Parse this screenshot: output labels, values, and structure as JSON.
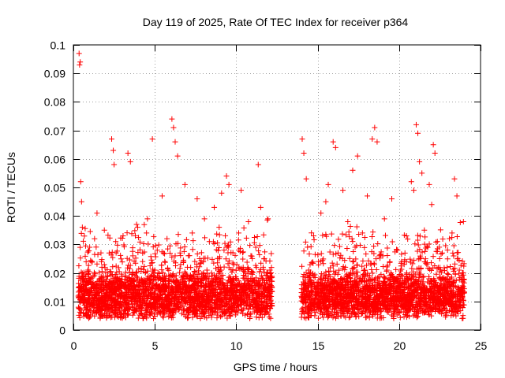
{
  "chart_data": {
    "type": "scatter",
    "title": "Day 119 of 2025, Rate Of TEC Index for receiver p364",
    "xlabel": "GPS time / hours",
    "ylabel": "ROTI / TECUs",
    "xlim": [
      0,
      25
    ],
    "ylim": [
      0,
      0.1
    ],
    "xticks": [
      0,
      5,
      10,
      15,
      20,
      25
    ],
    "yticks": [
      0,
      0.01,
      0.02,
      0.03,
      0.04,
      0.05,
      0.06,
      0.07,
      0.08,
      0.09,
      0.1
    ],
    "grid": true,
    "marker": "plus",
    "color": "#ff0000",
    "series": [
      {
        "x": [
          0.35,
          0.38,
          0.42,
          0.45,
          0.5,
          0.55,
          0.6,
          0.7,
          0.8,
          0.9,
          1.0,
          1.1,
          1.2,
          1.3,
          1.45,
          1.6,
          1.75,
          1.9,
          2.05,
          2.2,
          2.35,
          2.45,
          2.5,
          2.6,
          2.75,
          2.9,
          3.05,
          3.2,
          3.35,
          3.5,
          3.65,
          3.8,
          3.95,
          4.1,
          4.25,
          4.4,
          4.55,
          4.7,
          4.85,
          5.0,
          5.15,
          5.3,
          5.45,
          5.6,
          5.75,
          5.9,
          6.05,
          6.15,
          6.25,
          6.4,
          6.55,
          6.7,
          6.85,
          7.0,
          7.15,
          7.3,
          7.45,
          7.6,
          7.75,
          7.9,
          8.05,
          8.2,
          8.35,
          8.5,
          8.65,
          8.8,
          8.95,
          9.1,
          9.25,
          9.4,
          9.55,
          9.7,
          9.85,
          10.0,
          10.15,
          10.3,
          10.45,
          10.6,
          10.75,
          10.9,
          11.05,
          11.2,
          11.35,
          11.5,
          11.65,
          11.8,
          11.95,
          12.05
        ],
        "y": [
          0.097,
          0.093,
          0.094,
          0.052,
          0.045,
          0.036,
          0.018,
          0.011,
          0.014,
          0.021,
          0.029,
          0.015,
          0.009,
          0.032,
          0.041,
          0.012,
          0.022,
          0.035,
          0.013,
          0.027,
          0.067,
          0.063,
          0.058,
          0.031,
          0.018,
          0.012,
          0.033,
          0.019,
          0.062,
          0.059,
          0.026,
          0.014,
          0.036,
          0.011,
          0.024,
          0.017,
          0.039,
          0.015,
          0.067,
          0.021,
          0.028,
          0.013,
          0.047,
          0.019,
          0.032,
          0.011,
          0.074,
          0.071,
          0.066,
          0.061,
          0.027,
          0.016,
          0.051,
          0.022,
          0.013,
          0.034,
          0.018,
          0.046,
          0.025,
          0.012,
          0.039,
          0.021,
          0.031,
          0.014,
          0.043,
          0.019,
          0.036,
          0.048,
          0.028,
          0.054,
          0.051,
          0.017,
          0.023,
          0.011,
          0.034,
          0.049,
          0.021,
          0.015,
          0.038,
          0.026,
          0.013,
          0.029,
          0.058,
          0.043,
          0.022,
          0.014,
          0.039,
          0.012
        ]
      },
      {
        "x": [
          14.05,
          14.15,
          14.3,
          14.45,
          14.6,
          14.75,
          14.9,
          15.05,
          15.2,
          15.35,
          15.5,
          15.65,
          15.8,
          15.95,
          16.1,
          16.25,
          16.4,
          16.55,
          16.7,
          16.85,
          17.0,
          17.15,
          17.3,
          17.45,
          17.6,
          17.75,
          17.9,
          18.05,
          18.2,
          18.35,
          18.5,
          18.65,
          18.8,
          18.95,
          19.1,
          19.25,
          19.4,
          19.55,
          19.7,
          19.85,
          20.0,
          20.15,
          20.3,
          20.45,
          20.6,
          20.75,
          20.9,
          21.05,
          21.15,
          21.25,
          21.4,
          21.55,
          21.7,
          21.85,
          22.0,
          22.1,
          22.2,
          22.35,
          22.5,
          22.65,
          22.8,
          22.95,
          23.1,
          23.25,
          23.4,
          23.55,
          23.7,
          23.85,
          23.95
        ],
        "y": [
          0.067,
          0.062,
          0.053,
          0.021,
          0.016,
          0.033,
          0.012,
          0.024,
          0.041,
          0.018,
          0.045,
          0.051,
          0.015,
          0.066,
          0.064,
          0.027,
          0.013,
          0.049,
          0.022,
          0.038,
          0.017,
          0.056,
          0.029,
          0.061,
          0.014,
          0.034,
          0.021,
          0.047,
          0.012,
          0.067,
          0.071,
          0.066,
          0.026,
          0.015,
          0.039,
          0.021,
          0.013,
          0.046,
          0.018,
          0.028,
          0.011,
          0.024,
          0.016,
          0.033,
          0.012,
          0.052,
          0.049,
          0.072,
          0.069,
          0.059,
          0.055,
          0.035,
          0.023,
          0.051,
          0.044,
          0.065,
          0.062,
          0.031,
          0.018,
          0.027,
          0.014,
          0.022,
          0.016,
          0.034,
          0.053,
          0.047,
          0.021,
          0.019,
          0.038
        ]
      }
    ],
    "dense_band": [
      {
        "x_start": 0.3,
        "x_end": 12.2,
        "y_floor": 0.004,
        "y_base": 0.011,
        "y_spread": 0.012,
        "points": 2600
      },
      {
        "x_start": 14.0,
        "x_end": 24.0,
        "y_floor": 0.004,
        "y_base": 0.011,
        "y_spread": 0.011,
        "points": 2200
      }
    ]
  }
}
